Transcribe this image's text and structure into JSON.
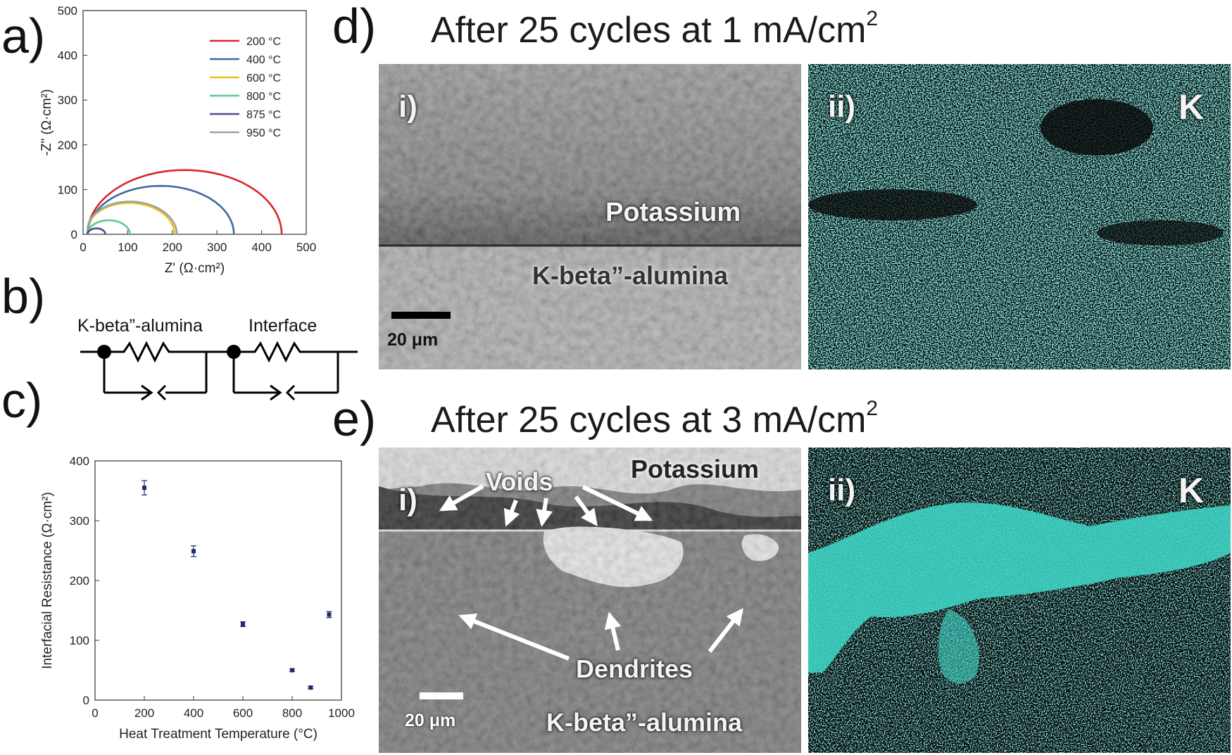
{
  "panels": {
    "a": {
      "letter": "a)",
      "chart_data": {
        "type": "line",
        "xlabel": "Z' (Ω·cm²)",
        "ylabel": "-Z\" (Ω·cm²)",
        "xlim": [
          0,
          500
        ],
        "ylim": [
          0,
          500
        ],
        "xticks": [
          0,
          100,
          200,
          300,
          400,
          500
        ],
        "yticks": [
          0,
          100,
          200,
          300,
          400,
          500
        ],
        "legend_position": "top-right",
        "series": [
          {
            "name": "200 °C",
            "color": "#d9262b",
            "start": 10,
            "end": 445,
            "offset": 0
          },
          {
            "name": "400 °C",
            "color": "#3b6aa0",
            "start": 10,
            "end": 338,
            "offset": 0
          },
          {
            "name": "600 °C",
            "color": "#e6c31a",
            "start": 10,
            "end": 205,
            "offset": 8
          },
          {
            "name": "800 °C",
            "color": "#5cc98b",
            "start": 10,
            "end": 105,
            "offset": 0
          },
          {
            "name": "875 °C",
            "color": "#4a4d8c",
            "start": 10,
            "end": 50,
            "offset": 0
          },
          {
            "name": "950 °C",
            "color": "#a0a0a0",
            "start": 10,
            "end": 210,
            "offset": 10
          }
        ]
      }
    },
    "b": {
      "letter": "b)",
      "label_1": "K-beta”-alumina",
      "label_2": "Interface"
    },
    "c": {
      "letter": "c)",
      "chart_data": {
        "type": "scatter",
        "xlabel": "Heat Treatment Temperature (°C)",
        "ylabel": "Interfacial Resistance (Ω·cm²)",
        "xlim": [
          0,
          1000
        ],
        "ylim": [
          0,
          400
        ],
        "xticks": [
          0,
          200,
          400,
          600,
          800,
          1000
        ],
        "yticks": [
          0,
          100,
          200,
          300,
          400
        ],
        "x": [
          200,
          400,
          600,
          800,
          875,
          950
        ],
        "y": [
          355,
          249,
          127,
          50,
          21,
          143
        ],
        "yerr": [
          12,
          9,
          4,
          2,
          2,
          5
        ],
        "color": "#1f2a6b"
      }
    },
    "d": {
      "letter": "d)",
      "title_main": "After 25 cycles at 1 mA/cm",
      "title_sup": "2",
      "sem_label": "i)",
      "map_label": "ii)",
      "element": "K",
      "potassium": "Potassium",
      "alumina": "K-beta”-alumina",
      "scale": "20 μm"
    },
    "e": {
      "letter": "e)",
      "title_main": "After 25 cycles at 3 mA/cm",
      "title_sup": "2",
      "sem_label": "i)",
      "map_label": "ii)",
      "element": "K",
      "potassium": "Potassium",
      "alumina": "K-beta”-alumina",
      "voids": "Voids",
      "dendrites": "Dendrites",
      "scale": "20 μm"
    },
    "colors": {
      "map_cyan": "#3fd6c6",
      "map_dark": "#050505",
      "sem_gray": "#8a8a8a"
    }
  }
}
